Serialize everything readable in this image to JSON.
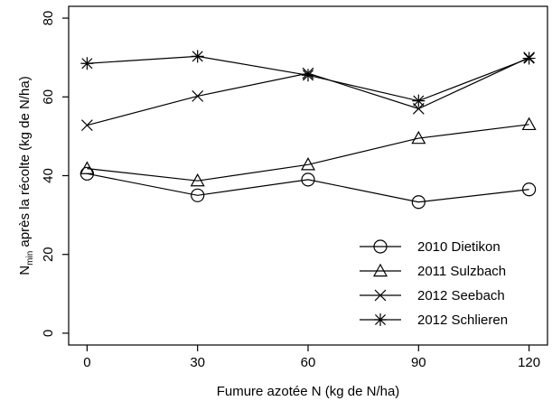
{
  "chart_data": {
    "type": "line",
    "title": "",
    "xlabel": "Fumure azotée N (kg de N/ha)",
    "ylabel": {
      "base": "N",
      "subscript": "min",
      "rest": " après la récolte (kg de N/ha)"
    },
    "x": [
      0,
      30,
      60,
      90,
      120
    ],
    "xticks": [
      "0",
      "30",
      "60",
      "90",
      "120"
    ],
    "yticks": [
      "0",
      "20",
      "40",
      "60",
      "80"
    ],
    "xlim": [
      -5,
      125
    ],
    "ylim": [
      -3,
      83
    ],
    "grid": false,
    "legend_position": "bottom-right",
    "series": [
      {
        "name": "2010 Dietikon",
        "marker": "circle",
        "values": [
          40.5,
          35,
          39,
          33.3,
          36.5
        ]
      },
      {
        "name": "2011 Sulzbach",
        "marker": "triangle",
        "values": [
          41.8,
          38.7,
          42.8,
          49.5,
          53
        ]
      },
      {
        "name": "2012 Seebach",
        "marker": "x",
        "values": [
          52.8,
          60.2,
          66,
          57,
          70
        ]
      },
      {
        "name": "2012 Schlieren",
        "marker": "asterisk",
        "values": [
          68.5,
          70.3,
          65.5,
          59,
          69.8
        ]
      }
    ]
  }
}
